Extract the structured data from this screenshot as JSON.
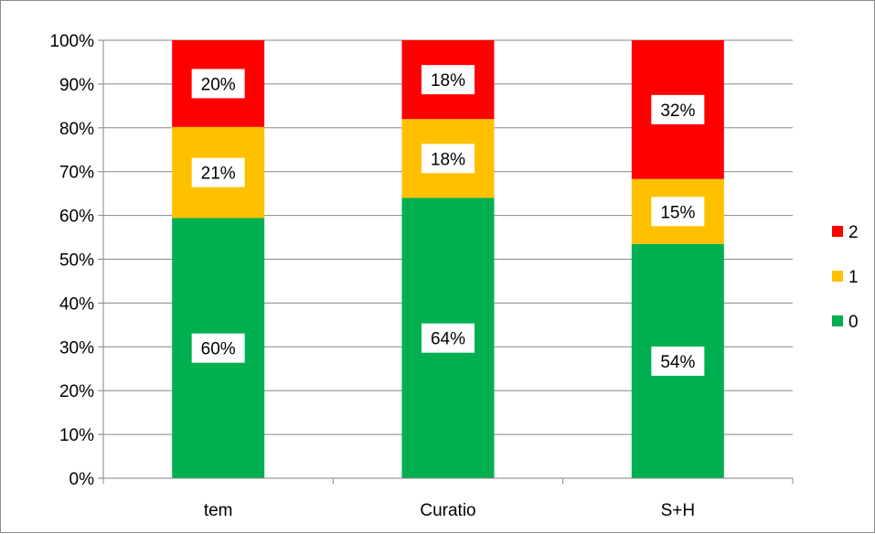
{
  "chart_data": {
    "type": "bar",
    "stacked": true,
    "normalized": true,
    "categories": [
      "tem",
      "Curatio",
      "S+H"
    ],
    "series": [
      {
        "name": "0",
        "color": "#00b050",
        "values": [
          60,
          64,
          54
        ],
        "labels": [
          "60%",
          "64%",
          "54%"
        ]
      },
      {
        "name": "1",
        "color": "#ffc000",
        "values": [
          21,
          18,
          15
        ],
        "labels": [
          "21%",
          "18%",
          "15%"
        ]
      },
      {
        "name": "2",
        "color": "#ff0000",
        "values": [
          20,
          18,
          32
        ],
        "labels": [
          "20%",
          "18%",
          "32%"
        ]
      }
    ],
    "y_ticks": [
      "0%",
      "10%",
      "20%",
      "30%",
      "40%",
      "50%",
      "60%",
      "70%",
      "80%",
      "90%",
      "100%"
    ],
    "ylim": [
      0,
      100
    ],
    "grid": true,
    "legend_position": "right",
    "legend_order": [
      "2",
      "1",
      "0"
    ]
  }
}
